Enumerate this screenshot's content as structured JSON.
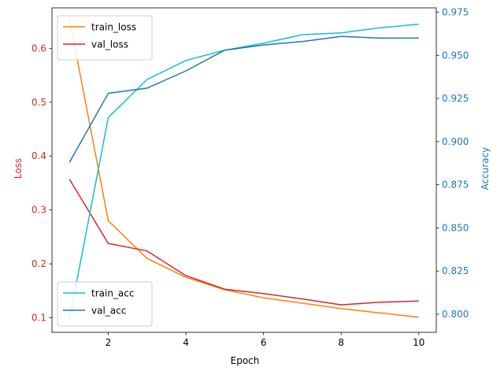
{
  "chart_data": {
    "type": "line",
    "xlabel": "Epoch",
    "ylabel_left": "Loss",
    "ylabel_right": "Accuracy",
    "x": [
      1,
      2,
      3,
      4,
      5,
      6,
      7,
      8,
      9,
      10
    ],
    "xlim": [
      0.55,
      10.45
    ],
    "xticks": [
      2,
      4,
      6,
      8,
      10
    ],
    "left_axis": {
      "ylim": [
        0.073,
        0.675
      ],
      "ticks": [
        0.1,
        0.2,
        0.3,
        0.4,
        0.5,
        0.6
      ],
      "tick_labels": [
        "0.1",
        "0.2",
        "0.3",
        "0.4",
        "0.5",
        "0.6"
      ],
      "color": "#d62728",
      "series": [
        {
          "name": "train_loss",
          "color": "#ff7f0e",
          "values": [
            0.655,
            0.28,
            0.21,
            0.175,
            0.152,
            0.137,
            0.127,
            0.117,
            0.109,
            0.101
          ]
        },
        {
          "name": "val_loss",
          "color": "#d62728",
          "values": [
            0.357,
            0.238,
            0.224,
            0.178,
            0.153,
            0.145,
            0.135,
            0.124,
            0.129,
            0.131
          ]
        }
      ],
      "legend_position": "upper left"
    },
    "right_axis": {
      "ylim": [
        0.7895,
        0.9775
      ],
      "ticks": [
        0.8,
        0.825,
        0.85,
        0.875,
        0.9,
        0.925,
        0.95,
        0.975
      ],
      "tick_labels": [
        "0.800",
        "0.825",
        "0.850",
        "0.875",
        "0.900",
        "0.925",
        "0.950",
        "0.975"
      ],
      "color": "#1f77b4",
      "series": [
        {
          "name": "train_acc",
          "color": "#17becf",
          "values": [
            0.797,
            0.914,
            0.936,
            0.947,
            0.953,
            0.957,
            0.962,
            0.963,
            0.966,
            0.968
          ]
        },
        {
          "name": "val_acc",
          "color": "#1f77b4",
          "values": [
            0.888,
            0.928,
            0.931,
            0.941,
            0.953,
            0.956,
            0.958,
            0.961,
            0.96,
            0.96
          ]
        }
      ],
      "legend_position": "lower left"
    }
  }
}
